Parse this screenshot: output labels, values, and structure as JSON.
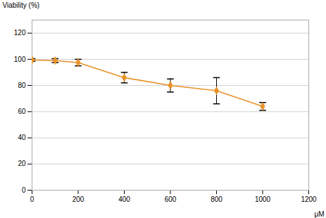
{
  "chart_data": {
    "type": "line",
    "x": [
      0,
      100,
      200,
      400,
      600,
      800,
      1000
    ],
    "values": [
      99.5,
      99.0,
      97.5,
      86.0,
      80.0,
      76.0,
      64.0
    ],
    "yerr": [
      1.0,
      1.5,
      2.5,
      4.0,
      5.0,
      10.0,
      3.0
    ],
    "color": "#E8922A",
    "marker": "diamond",
    "xlabel": "μM",
    "ylabel": "Viability (%)",
    "xlim": [
      0,
      1200
    ],
    "ylim": [
      0,
      130
    ],
    "xticks": [
      0,
      200,
      400,
      600,
      800,
      1000,
      1200
    ],
    "yticks": [
      0,
      20,
      40,
      60,
      80,
      100,
      120
    ],
    "grid": "y"
  }
}
